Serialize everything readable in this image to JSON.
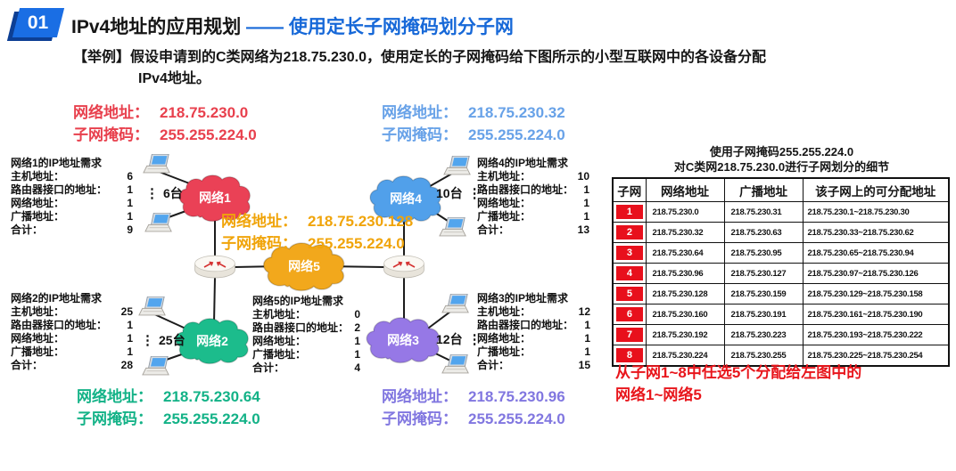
{
  "colors": {
    "title_blue": "#1668d8",
    "badge_blue": "#1a6ee4",
    "badge_shadow": "#0d3f94",
    "c_red": "#e8404d",
    "c_blue": "#68a2e8",
    "c_orange": "#f0a40a",
    "c_green": "#13b287",
    "c_purple": "#8177e0",
    "table_red": "#e8101c",
    "note_red": "#e8161c"
  },
  "header": {
    "badge": "01",
    "title": "IPv4地址的应用规划",
    "title_separator": "——",
    "title_highlight": "使用定长子网掩码划分子网",
    "example_line1": "【举例】假设申请到的C类网络为218.75.230.0，使用定长的子网掩码给下图所示的小型互联网中的各设备分配",
    "example_line2": "IPv4地址。"
  },
  "address_labels": {
    "net1": {
      "network_label": "网络地址：",
      "network_value": "218.75.230.0",
      "mask_label": "子网掩码：",
      "mask_value": "255.255.224.0",
      "color": "#e8404d"
    },
    "net4": {
      "network_label": "网络地址：",
      "network_value": "218.75.230.32",
      "mask_label": "子网掩码：",
      "mask_value": "255.255.224.0",
      "color": "#68a2e8"
    },
    "net5": {
      "network_label": "网络地址：",
      "network_value": "218.75.230.128",
      "mask_label": "子网掩码：",
      "mask_value": "255.255.224.0",
      "color": "#f0a40a"
    },
    "net2": {
      "network_label": "网络地址：",
      "network_value": "218.75.230.64",
      "mask_label": "子网掩码：",
      "mask_value": "255.255.224.0",
      "color": "#13b287"
    },
    "net3": {
      "network_label": "网络地址：",
      "network_value": "218.75.230.96",
      "mask_label": "子网掩码：",
      "mask_value": "255.255.224.0",
      "color": "#8177e0"
    }
  },
  "requirements": {
    "net1": {
      "title": "网络1的IP地址需求",
      "rows": [
        {
          "label": "主机地址：",
          "value": "6"
        },
        {
          "label": "路由器接口的地址：",
          "value": "1"
        },
        {
          "label": "网络地址：",
          "value": "1"
        },
        {
          "label": "广播地址：",
          "value": "1"
        },
        {
          "label": "合计：",
          "value": "9"
        }
      ]
    },
    "net4": {
      "title": "网络4的IP地址需求",
      "rows": [
        {
          "label": "主机地址：",
          "value": "10"
        },
        {
          "label": "路由器接口的地址：",
          "value": "1"
        },
        {
          "label": "网络地址：",
          "value": "1"
        },
        {
          "label": "广播地址：",
          "value": "1"
        },
        {
          "label": "合计：",
          "value": "13"
        }
      ]
    },
    "net2": {
      "title": "网络2的IP地址需求",
      "rows": [
        {
          "label": "主机地址：",
          "value": "25"
        },
        {
          "label": "路由器接口的地址：",
          "value": "1"
        },
        {
          "label": "网络地址：",
          "value": "1"
        },
        {
          "label": "广播地址：",
          "value": "1"
        },
        {
          "label": "合计：",
          "value": "28"
        }
      ]
    },
    "net5": {
      "title": "网络5的IP地址需求",
      "rows": [
        {
          "label": "主机地址：",
          "value": "0"
        },
        {
          "label": "路由器接口的地址：",
          "value": "2"
        },
        {
          "label": "网络地址：",
          "value": "1"
        },
        {
          "label": "广播地址：",
          "value": "1"
        },
        {
          "label": "合计：",
          "value": "4"
        }
      ]
    },
    "net3": {
      "title": "网络3的IP地址需求",
      "rows": [
        {
          "label": "主机地址：",
          "value": "12"
        },
        {
          "label": "路由器接口的地址：",
          "value": "1"
        },
        {
          "label": "网络地址：",
          "value": "1"
        },
        {
          "label": "广播地址：",
          "value": "1"
        },
        {
          "label": "合计：",
          "value": "15"
        }
      ]
    }
  },
  "diagram": {
    "clouds": {
      "net1": {
        "label": "网络1",
        "color": "#ea4156"
      },
      "net2": {
        "label": "网络2",
        "color": "#1cbc8c"
      },
      "net3": {
        "label": "网络3",
        "color": "#9678e6"
      },
      "net4": {
        "label": "网络4",
        "color": "#51a0ea"
      },
      "net5": {
        "label": "网络5",
        "color": "#f2a81c"
      }
    },
    "counts": {
      "net1": "6台",
      "net2": "25台",
      "net3": "12台",
      "net4": "10台"
    },
    "more_dots": "⋮"
  },
  "table": {
    "title_line1": "使用子网掩码255.255.224.0",
    "title_line2": "对C类网218.75.230.0进行子网划分的细节",
    "headers": [
      "子网",
      "网络地址",
      "广播地址",
      "该子网上的可分配地址"
    ],
    "rows": [
      [
        "1",
        "218.75.230.0",
        "218.75.230.31",
        "218.75.230.1~218.75.230.30"
      ],
      [
        "2",
        "218.75.230.32",
        "218.75.230.63",
        "218.75.230.33~218.75.230.62"
      ],
      [
        "3",
        "218.75.230.64",
        "218.75.230.95",
        "218.75.230.65~218.75.230.94"
      ],
      [
        "4",
        "218.75.230.96",
        "218.75.230.127",
        "218.75.230.97~218.75.230.126"
      ],
      [
        "5",
        "218.75.230.128",
        "218.75.230.159",
        "218.75.230.129~218.75.230.158"
      ],
      [
        "6",
        "218.75.230.160",
        "218.75.230.191",
        "218.75.230.161~218.75.230.190"
      ],
      [
        "7",
        "218.75.230.192",
        "218.75.230.223",
        "218.75.230.193~218.75.230.222"
      ],
      [
        "8",
        "218.75.230.224",
        "218.75.230.255",
        "218.75.230.225~218.75.230.254"
      ]
    ]
  },
  "footer_note": {
    "line1": "从子网1~8中任选5个分配给左图中的",
    "line2": "网络1~网络5"
  }
}
